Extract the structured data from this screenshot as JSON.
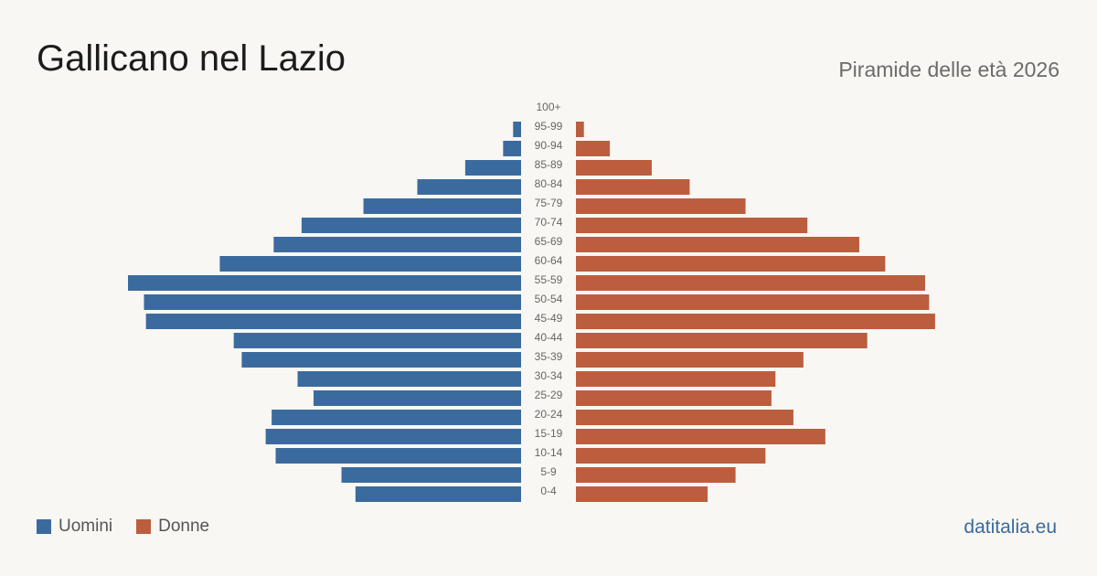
{
  "title": "Gallicano nel Lazio",
  "subtitle": "Piramide delle età 2026",
  "brand": "datitalia.eu",
  "legend": {
    "male_label": "Uomini",
    "female_label": "Donne"
  },
  "colors": {
    "male": "#3b6b9e",
    "female": "#bb5e3e",
    "background": "#f9f7f3"
  },
  "chart_data": {
    "type": "bar",
    "orientation": "horizontal-pyramid",
    "categories": [
      "100+",
      "95-99",
      "90-94",
      "85-89",
      "80-84",
      "75-79",
      "70-74",
      "65-69",
      "60-64",
      "55-59",
      "50-54",
      "45-49",
      "40-44",
      "35-39",
      "30-34",
      "25-29",
      "20-24",
      "15-19",
      "10-14",
      "5-9",
      "0-4"
    ],
    "series": [
      {
        "name": "Uomini",
        "values": [
          0,
          4,
          9,
          28,
          52,
          79,
          110,
          124,
          151,
          197,
          189,
          188,
          144,
          140,
          112,
          104,
          125,
          128,
          123,
          90,
          83
        ]
      },
      {
        "name": "Donne",
        "values": [
          0,
          4,
          17,
          38,
          57,
          85,
          116,
          142,
          155,
          175,
          177,
          180,
          146,
          114,
          100,
          98,
          109,
          125,
          95,
          80,
          66
        ]
      }
    ],
    "legend_position": "bottom-left",
    "grid": false
  }
}
